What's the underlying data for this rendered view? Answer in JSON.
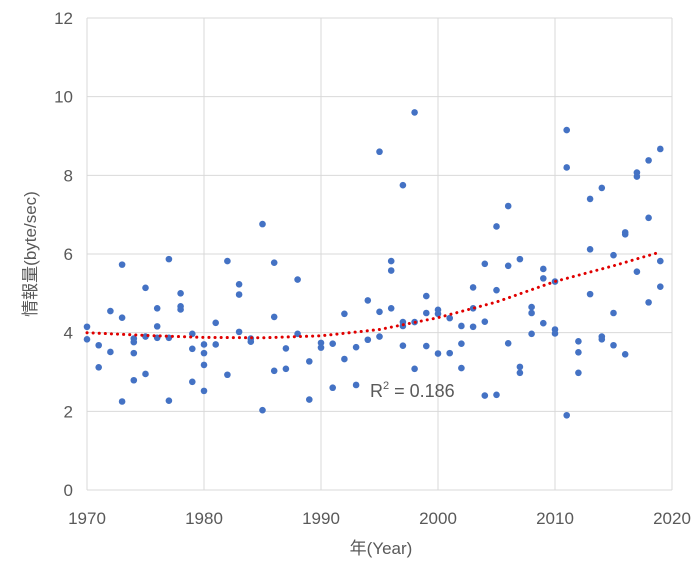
{
  "chart_data": {
    "type": "scatter",
    "title": "",
    "xlabel": "年(Year)",
    "ylabel": "情報量(byte/sec)",
    "xlim": [
      1970,
      2020
    ],
    "ylim": [
      0,
      12
    ],
    "xticks": [
      1970,
      1980,
      1990,
      2000,
      2010,
      2020
    ],
    "yticks": [
      0,
      2,
      4,
      6,
      8,
      10,
      12
    ],
    "grid": true,
    "legend": "none",
    "colors": {
      "points": "#4472c4",
      "trendline": "#e00000",
      "grid": "#d9d9d9",
      "axis_text": "#595959"
    },
    "trendline": {
      "type": "polynomial-2",
      "style": "dotted",
      "r_squared_prefix": "R",
      "r_squared_exponent": "2",
      "r_squared_suffix": " = 0.186",
      "values": [
        [
          1970,
          4.0
        ],
        [
          1975,
          3.93
        ],
        [
          1980,
          3.88
        ],
        [
          1985,
          3.87
        ],
        [
          1990,
          3.92
        ],
        [
          1995,
          4.08
        ],
        [
          2000,
          4.38
        ],
        [
          2005,
          4.78
        ],
        [
          2010,
          5.3
        ],
        [
          2015,
          5.7
        ],
        [
          2019,
          6.05
        ]
      ]
    },
    "series": [
      {
        "name": "data",
        "points": [
          [
            1970,
            4.15
          ],
          [
            1970,
            3.83
          ],
          [
            1971,
            3.12
          ],
          [
            1971,
            3.68
          ],
          [
            1972,
            4.55
          ],
          [
            1972,
            3.51
          ],
          [
            1973,
            5.73
          ],
          [
            1973,
            4.38
          ],
          [
            1973,
            2.25
          ],
          [
            1974,
            3.85
          ],
          [
            1974,
            3.48
          ],
          [
            1974,
            2.79
          ],
          [
            1974,
            3.76
          ],
          [
            1975,
            5.14
          ],
          [
            1975,
            3.9
          ],
          [
            1975,
            2.95
          ],
          [
            1976,
            4.62
          ],
          [
            1976,
            4.16
          ],
          [
            1976,
            3.87
          ],
          [
            1977,
            5.87
          ],
          [
            1977,
            3.87
          ],
          [
            1977,
            2.27
          ],
          [
            1978,
            5.0
          ],
          [
            1978,
            4.67
          ],
          [
            1978,
            4.59
          ],
          [
            1979,
            3.97
          ],
          [
            1979,
            3.59
          ],
          [
            1979,
            2.75
          ],
          [
            1980,
            3.7
          ],
          [
            1980,
            3.48
          ],
          [
            1980,
            3.18
          ],
          [
            1980,
            2.52
          ],
          [
            1981,
            4.25
          ],
          [
            1981,
            3.7
          ],
          [
            1982,
            5.82
          ],
          [
            1982,
            2.93
          ],
          [
            1983,
            5.23
          ],
          [
            1983,
            4.97
          ],
          [
            1983,
            4.02
          ],
          [
            1984,
            3.85
          ],
          [
            1984,
            3.77
          ],
          [
            1985,
            6.76
          ],
          [
            1985,
            2.03
          ],
          [
            1986,
            5.78
          ],
          [
            1986,
            4.4
          ],
          [
            1986,
            3.03
          ],
          [
            1987,
            3.6
          ],
          [
            1987,
            3.08
          ],
          [
            1988,
            5.35
          ],
          [
            1988,
            3.97
          ],
          [
            1989,
            3.27
          ],
          [
            1989,
            2.3
          ],
          [
            1990,
            3.74
          ],
          [
            1990,
            3.62
          ],
          [
            1991,
            3.72
          ],
          [
            1991,
            2.6
          ],
          [
            1992,
            4.48
          ],
          [
            1992,
            3.33
          ],
          [
            1993,
            3.63
          ],
          [
            1993,
            2.67
          ],
          [
            1994,
            4.82
          ],
          [
            1994,
            3.82
          ],
          [
            1995,
            8.6
          ],
          [
            1995,
            4.53
          ],
          [
            1995,
            3.9
          ],
          [
            1996,
            5.82
          ],
          [
            1996,
            5.58
          ],
          [
            1996,
            4.62
          ],
          [
            1997,
            7.75
          ],
          [
            1997,
            4.27
          ],
          [
            1997,
            4.17
          ],
          [
            1997,
            3.67
          ],
          [
            1998,
            9.6
          ],
          [
            1998,
            4.27
          ],
          [
            1998,
            3.08
          ],
          [
            1999,
            4.93
          ],
          [
            1999,
            4.5
          ],
          [
            1999,
            3.66
          ],
          [
            2000,
            4.58
          ],
          [
            2000,
            4.48
          ],
          [
            2000,
            3.47
          ],
          [
            2001,
            4.37
          ],
          [
            2001,
            3.48
          ],
          [
            2002,
            4.17
          ],
          [
            2002,
            3.72
          ],
          [
            2002,
            3.1
          ],
          [
            2003,
            5.15
          ],
          [
            2003,
            4.62
          ],
          [
            2003,
            4.15
          ],
          [
            2004,
            5.75
          ],
          [
            2004,
            4.28
          ],
          [
            2004,
            2.4
          ],
          [
            2005,
            6.7
          ],
          [
            2005,
            5.08
          ],
          [
            2005,
            2.42
          ],
          [
            2006,
            7.22
          ],
          [
            2006,
            5.7
          ],
          [
            2006,
            3.73
          ],
          [
            2007,
            5.87
          ],
          [
            2007,
            3.13
          ],
          [
            2007,
            2.98
          ],
          [
            2008,
            4.65
          ],
          [
            2008,
            4.5
          ],
          [
            2008,
            3.97
          ],
          [
            2009,
            5.62
          ],
          [
            2009,
            5.38
          ],
          [
            2009,
            4.24
          ],
          [
            2010,
            5.3
          ],
          [
            2010,
            4.08
          ],
          [
            2010,
            3.98
          ],
          [
            2011,
            9.15
          ],
          [
            2011,
            8.2
          ],
          [
            2011,
            1.9
          ],
          [
            2012,
            3.78
          ],
          [
            2012,
            3.5
          ],
          [
            2012,
            2.98
          ],
          [
            2013,
            7.4
          ],
          [
            2013,
            6.12
          ],
          [
            2013,
            4.98
          ],
          [
            2014,
            7.68
          ],
          [
            2014,
            3.9
          ],
          [
            2014,
            3.83
          ],
          [
            2015,
            5.97
          ],
          [
            2015,
            4.5
          ],
          [
            2015,
            3.68
          ],
          [
            2016,
            6.55
          ],
          [
            2016,
            6.5
          ],
          [
            2016,
            3.45
          ],
          [
            2017,
            8.07
          ],
          [
            2017,
            7.97
          ],
          [
            2017,
            5.55
          ],
          [
            2018,
            8.38
          ],
          [
            2018,
            6.92
          ],
          [
            2018,
            4.77
          ],
          [
            2019,
            8.67
          ],
          [
            2019,
            5.82
          ],
          [
            2019,
            5.17
          ]
        ]
      }
    ]
  }
}
